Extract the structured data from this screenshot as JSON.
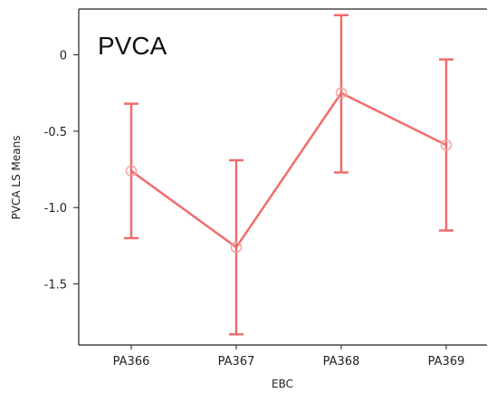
{
  "chart_data": {
    "type": "line",
    "title": "PVCA",
    "xlabel": "EBC",
    "ylabel": "PVCA LS Means",
    "categories": [
      "PA366",
      "PA367",
      "PA368",
      "PA369"
    ],
    "values": [
      -0.76,
      -1.26,
      -0.25,
      -0.59
    ],
    "error_low": [
      -1.2,
      -1.83,
      -0.77,
      -1.15
    ],
    "error_high": [
      -0.32,
      -0.69,
      0.26,
      -0.03
    ],
    "ylim": [
      -1.9,
      0.3
    ],
    "yticks": [
      0,
      -0.5,
      -1.0,
      -1.5
    ],
    "ytick_labels": [
      "0",
      "-0.5",
      "-1.0",
      "-1.5"
    ],
    "grid": false,
    "colors": {
      "series": "#f06c6c",
      "axis": "#222222"
    }
  }
}
